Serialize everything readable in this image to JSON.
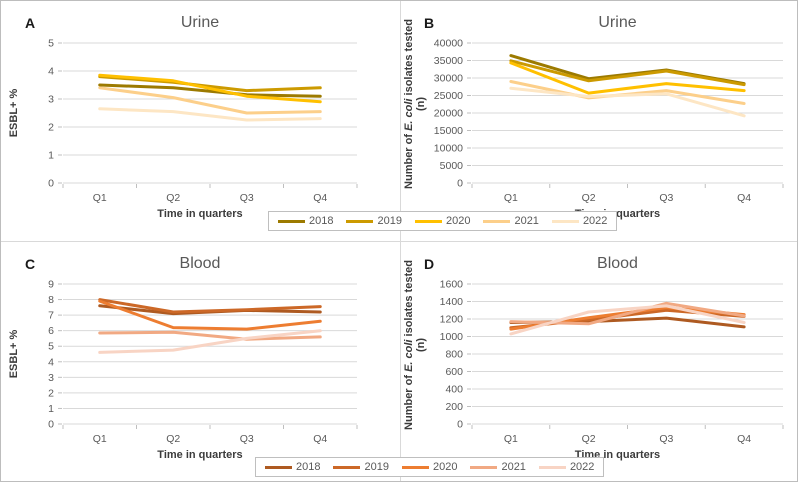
{
  "chart_data": [
    {
      "id": "A",
      "panel_label": "A",
      "type": "line",
      "title": "Urine",
      "xlabel": "Time in quarters",
      "ylabel": "ESBL+ %",
      "categories": [
        "Q1",
        "Q2",
        "Q3",
        "Q4"
      ],
      "ylim": [
        0,
        5
      ],
      "ystep": 1,
      "grid": true,
      "legend_position": "shared-bottom",
      "series": [
        {
          "name": "2018",
          "color": "#9C7A00",
          "values": [
            3.5,
            3.4,
            3.15,
            3.1
          ]
        },
        {
          "name": "2019",
          "color": "#CC9A00",
          "values": [
            3.8,
            3.6,
            3.3,
            3.4
          ]
        },
        {
          "name": "2020",
          "color": "#FFC000",
          "values": [
            3.85,
            3.65,
            3.1,
            2.9
          ]
        },
        {
          "name": "2021",
          "color": "#FCCF8A",
          "values": [
            3.4,
            3.05,
            2.5,
            2.55
          ]
        },
        {
          "name": "2022",
          "color": "#FDE6C4",
          "values": [
            2.65,
            2.55,
            2.25,
            2.3
          ]
        }
      ]
    },
    {
      "id": "B",
      "panel_label": "B",
      "type": "line",
      "title": "Urine",
      "xlabel": "Time in quarters",
      "ylabel_lines": [
        "Number of E. coli isolates tested",
        "(n)"
      ],
      "ylabel_italic_substring": "E. coli",
      "categories": [
        "Q1",
        "Q2",
        "Q3",
        "Q4"
      ],
      "ylim": [
        0,
        40000
      ],
      "ystep": 5000,
      "grid": true,
      "legend_position": "shared-bottom",
      "series": [
        {
          "name": "2018",
          "color": "#9C7A00",
          "values": [
            36400,
            29800,
            32300,
            28400
          ]
        },
        {
          "name": "2019",
          "color": "#CC9A00",
          "values": [
            34900,
            29200,
            32000,
            28100
          ]
        },
        {
          "name": "2020",
          "color": "#FFC000",
          "values": [
            34300,
            25700,
            28400,
            26400
          ]
        },
        {
          "name": "2021",
          "color": "#FCCF8A",
          "values": [
            29000,
            24300,
            26400,
            22700
          ]
        },
        {
          "name": "2022",
          "color": "#FDE6C4",
          "values": [
            27100,
            24700,
            25500,
            19200
          ]
        }
      ]
    },
    {
      "id": "C",
      "panel_label": "C",
      "type": "line",
      "title": "Blood",
      "xlabel": "Time in quarters",
      "ylabel": "ESBL+ %",
      "categories": [
        "Q1",
        "Q2",
        "Q3",
        "Q4"
      ],
      "ylim": [
        0,
        9
      ],
      "ystep": 1,
      "grid": true,
      "legend_position": "shared-bottom",
      "series": [
        {
          "name": "2018",
          "color": "#AE5A21",
          "values": [
            7.6,
            7.1,
            7.3,
            7.2
          ]
        },
        {
          "name": "2019",
          "color": "#CC6827",
          "values": [
            8.0,
            7.2,
            7.35,
            7.55
          ]
        },
        {
          "name": "2020",
          "color": "#ED7D31",
          "values": [
            7.9,
            6.2,
            6.1,
            6.6
          ]
        },
        {
          "name": "2021",
          "color": "#F1A983",
          "values": [
            5.85,
            5.9,
            5.45,
            5.6
          ]
        },
        {
          "name": "2022",
          "color": "#F8D4C4",
          "values": [
            4.6,
            4.75,
            5.5,
            6.0
          ]
        }
      ]
    },
    {
      "id": "D",
      "panel_label": "D",
      "type": "line",
      "title": "Blood",
      "xlabel": "Time in quarters",
      "ylabel_lines": [
        "Number of E. coli isolates tested",
        "(n)"
      ],
      "ylabel_italic_substring": "E. coli",
      "categories": [
        "Q1",
        "Q2",
        "Q3",
        "Q4"
      ],
      "ylim": [
        0,
        1600
      ],
      "ystep": 200,
      "grid": true,
      "legend_position": "shared-bottom",
      "series": [
        {
          "name": "2018",
          "color": "#AE5A21",
          "values": [
            1160,
            1170,
            1210,
            1110
          ]
        },
        {
          "name": "2019",
          "color": "#CC6827",
          "values": [
            1100,
            1190,
            1300,
            1230
          ]
        },
        {
          "name": "2020",
          "color": "#ED7D31",
          "values": [
            1085,
            1215,
            1330,
            1250
          ]
        },
        {
          "name": "2021",
          "color": "#F1A983",
          "values": [
            1170,
            1145,
            1380,
            1235
          ]
        },
        {
          "name": "2022",
          "color": "#F8D4C4",
          "values": [
            1030,
            1280,
            1350,
            1160
          ]
        }
      ]
    }
  ],
  "legends": [
    {
      "name": "legend-urine",
      "items": [
        {
          "label": "2018",
          "color": "#9C7A00"
        },
        {
          "label": "2019",
          "color": "#CC9A00"
        },
        {
          "label": "2020",
          "color": "#FFC000"
        },
        {
          "label": "2021",
          "color": "#FCCF8A"
        },
        {
          "label": "2022",
          "color": "#FDE6C4"
        }
      ]
    },
    {
      "name": "legend-blood",
      "items": [
        {
          "label": "2018",
          "color": "#AE5A21"
        },
        {
          "label": "2019",
          "color": "#CC6827"
        },
        {
          "label": "2020",
          "color": "#ED7D31"
        },
        {
          "label": "2021",
          "color": "#F1A983"
        },
        {
          "label": "2022",
          "color": "#F8D4C4"
        }
      ]
    }
  ],
  "style_colors": {
    "gridline": "#d9d9d9",
    "tick_text": "#595959",
    "title_text": "#595959",
    "axis_title_text": "#3b3b3b",
    "panel_letter": "#1a1a1a"
  }
}
